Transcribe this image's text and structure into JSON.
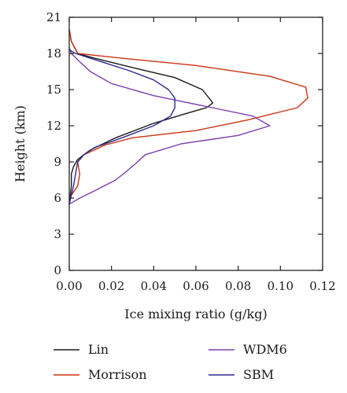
{
  "chart_data": {
    "type": "line",
    "xlabel": "Ice mixing ratio (g/kg)",
    "ylabel": "Height (km)",
    "xlim": [
      0,
      0.12
    ],
    "ylim": [
      0,
      21
    ],
    "xticks": [
      "0.00",
      "0.02",
      "0.04",
      "0.06",
      "0.08",
      "0.10",
      "0.12"
    ],
    "yticks": [
      "0",
      "3",
      "6",
      "9",
      "12",
      "15",
      "18",
      "21"
    ],
    "grid": false,
    "legend_position": "bottom",
    "series": [
      {
        "name": "Lin",
        "color": "#1a1a1a",
        "points": [
          [
            0.0,
            5.5
          ],
          [
            0.001,
            7.0
          ],
          [
            0.001,
            8.0
          ],
          [
            0.002,
            8.6
          ],
          [
            0.004,
            9.2
          ],
          [
            0.01,
            10.0
          ],
          [
            0.022,
            11.0
          ],
          [
            0.04,
            12.2
          ],
          [
            0.055,
            13.0
          ],
          [
            0.065,
            13.5
          ],
          [
            0.068,
            13.9
          ],
          [
            0.063,
            15.0
          ],
          [
            0.05,
            16.0
          ],
          [
            0.033,
            16.7
          ],
          [
            0.012,
            17.6
          ],
          [
            0.004,
            18.0
          ],
          [
            0.001,
            19.0
          ],
          [
            0.0,
            20.0
          ]
        ]
      },
      {
        "name": "Morrison",
        "color": "#cc3311",
        "points": [
          [
            0.0,
            6.0
          ],
          [
            0.002,
            6.5
          ],
          [
            0.004,
            7.0
          ],
          [
            0.005,
            8.0
          ],
          [
            0.004,
            9.0
          ],
          [
            0.007,
            9.6
          ],
          [
            0.017,
            10.4
          ],
          [
            0.03,
            11.0
          ],
          [
            0.06,
            11.6
          ],
          [
            0.085,
            12.5
          ],
          [
            0.108,
            13.5
          ],
          [
            0.113,
            14.3
          ],
          [
            0.112,
            15.2
          ],
          [
            0.095,
            16.1
          ],
          [
            0.06,
            17.0
          ],
          [
            0.025,
            17.6
          ],
          [
            0.004,
            18.0
          ],
          [
            0.001,
            19.0
          ],
          [
            0.0,
            20.0
          ]
        ]
      },
      {
        "name": "WDM6",
        "color": "#7b3fb0",
        "points": [
          [
            0.0,
            5.5
          ],
          [
            0.005,
            6.0
          ],
          [
            0.012,
            6.6
          ],
          [
            0.022,
            7.5
          ],
          [
            0.027,
            8.2
          ],
          [
            0.031,
            8.8
          ],
          [
            0.036,
            9.6
          ],
          [
            0.053,
            10.5
          ],
          [
            0.08,
            11.2
          ],
          [
            0.095,
            12.0
          ],
          [
            0.087,
            12.8
          ],
          [
            0.065,
            13.6
          ],
          [
            0.04,
            14.5
          ],
          [
            0.02,
            15.5
          ],
          [
            0.01,
            16.5
          ],
          [
            0.005,
            17.3
          ],
          [
            0.001,
            18.0
          ],
          [
            0.0,
            18.5
          ]
        ]
      },
      {
        "name": "SBM",
        "color": "#2b2a8f",
        "points": [
          [
            0.0,
            5.5
          ],
          [
            0.002,
            7.0
          ],
          [
            0.003,
            8.0
          ],
          [
            0.004,
            9.0
          ],
          [
            0.007,
            9.6
          ],
          [
            0.012,
            10.2
          ],
          [
            0.025,
            11.0
          ],
          [
            0.04,
            12.0
          ],
          [
            0.048,
            12.8
          ],
          [
            0.05,
            13.5
          ],
          [
            0.05,
            14.3
          ],
          [
            0.047,
            15.0
          ],
          [
            0.04,
            15.8
          ],
          [
            0.028,
            16.6
          ],
          [
            0.01,
            17.6
          ],
          [
            0.003,
            18.0
          ],
          [
            0.0,
            18.3
          ]
        ]
      }
    ]
  }
}
